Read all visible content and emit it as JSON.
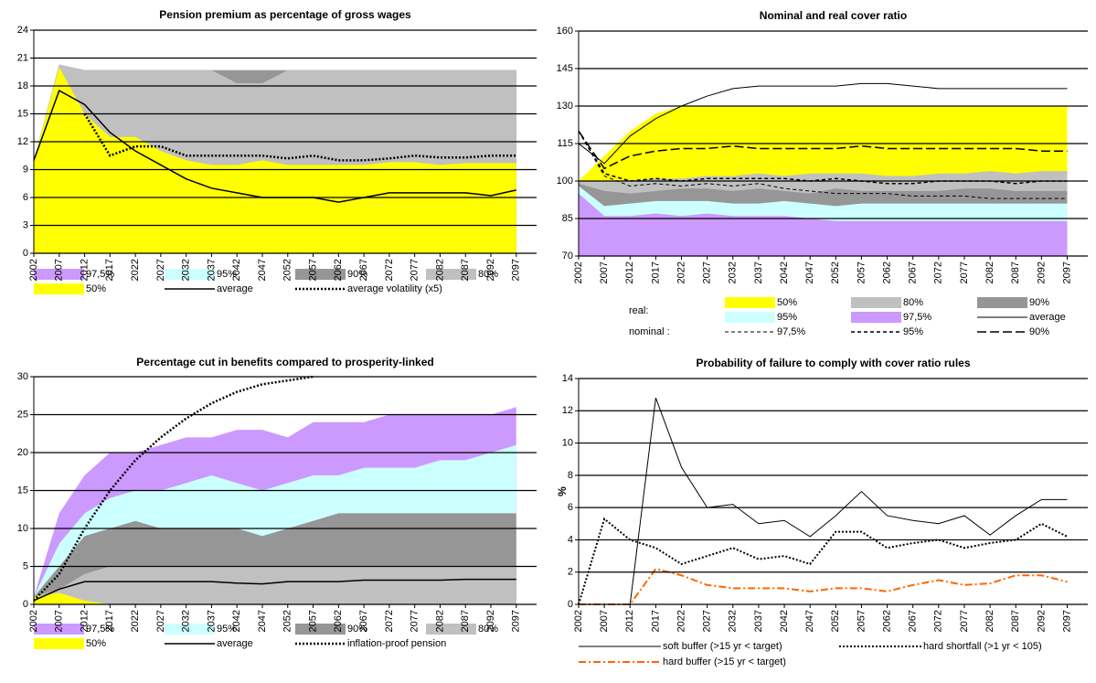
{
  "chart_data": [
    {
      "type": "area",
      "title": "Pension premium as percentage of gross wages",
      "x": [
        2002,
        2007,
        2012,
        2017,
        2022,
        2027,
        2032,
        2037,
        2042,
        2047,
        2052,
        2057,
        2062,
        2067,
        2072,
        2077,
        2082,
        2087,
        2092,
        2097
      ],
      "xlim": [
        2002,
        2101
      ],
      "xticks": [
        2002,
        2007,
        2012,
        2017,
        2022,
        2027,
        2032,
        2037,
        2042,
        2047,
        2052,
        2057,
        2062,
        2067,
        2072,
        2077,
        2082,
        2087,
        2092,
        2097
      ],
      "ylim": [
        0,
        24
      ],
      "yticks": [
        0,
        3,
        6,
        9,
        12,
        15,
        18,
        21,
        24
      ],
      "grid": true,
      "series": [
        {
          "name": "97,5%",
          "color": "#cc99ff",
          "fill": true,
          "values": [
            10,
            20.3,
            19.7,
            19.7,
            19.7,
            19.7,
            19.7,
            19.7,
            19.7,
            19.7,
            19.7,
            19.7,
            19.7,
            19.7,
            19.7,
            19.7,
            19.7,
            19.7,
            19.7,
            19.7
          ]
        },
        {
          "name": "95%",
          "color": "#ccffff",
          "fill": true,
          "values": [
            10,
            20.3,
            19.7,
            19.7,
            19.7,
            19.7,
            19.7,
            19.7,
            19.7,
            19.7,
            19.7,
            19.7,
            19.7,
            19.7,
            19.7,
            19.7,
            19.7,
            19.7,
            19.7,
            19.7
          ]
        },
        {
          "name": "90%",
          "color": "#969696",
          "fill": true,
          "values": [
            10,
            20.3,
            19.7,
            19.7,
            19.7,
            19.7,
            19.7,
            19.7,
            19.7,
            19.7,
            19.7,
            19.7,
            19.7,
            19.7,
            19.7,
            19.7,
            19.7,
            19.7,
            19.7,
            19.7
          ]
        },
        {
          "name": "80%",
          "color": "#c0c0c0",
          "fill": true,
          "values": [
            10,
            20.3,
            19.7,
            19.7,
            19.7,
            19.7,
            19.7,
            19.7,
            18.3,
            18.3,
            19.7,
            19.7,
            19.7,
            19.7,
            19.7,
            19.7,
            19.7,
            19.7,
            19.7,
            19.7
          ]
        },
        {
          "name": "50%",
          "color": "#ffff00",
          "fill": true,
          "values": [
            10,
            20,
            15,
            12.5,
            12.5,
            11,
            10,
            9.5,
            9.5,
            10,
            9.5,
            9.5,
            9.5,
            9.5,
            9.8,
            9.8,
            9.5,
            9.7,
            9.7,
            9.7
          ]
        },
        {
          "name": "average",
          "color": "#000000",
          "dash": "solid",
          "width": 1.5,
          "values": [
            10,
            17.5,
            16,
            13,
            11,
            9.5,
            8,
            7,
            6.5,
            6,
            6,
            6,
            5.5,
            6,
            6.5,
            6.5,
            6.5,
            6.5,
            6.2,
            6.8
          ]
        },
        {
          "name": "average volatility (x5)",
          "color": "#000000",
          "dash": "dotted",
          "width": 2.5,
          "values": [
            null,
            null,
            15,
            10.5,
            11.5,
            11.5,
            10.5,
            10.5,
            10.5,
            10.5,
            10.2,
            10.5,
            10,
            10,
            10.2,
            10.5,
            10.3,
            10.3,
            10.5,
            10.5
          ]
        }
      ]
    },
    {
      "type": "area",
      "title": "Nominal and real cover ratio",
      "x": [
        2002,
        2007,
        2012,
        2017,
        2022,
        2027,
        2032,
        2037,
        2042,
        2047,
        2052,
        2057,
        2062,
        2067,
        2072,
        2077,
        2082,
        2087,
        2092,
        2097
      ],
      "xlim": [
        2002,
        2101
      ],
      "xticks": [
        2002,
        2007,
        2012,
        2017,
        2022,
        2027,
        2032,
        2037,
        2042,
        2047,
        2052,
        2057,
        2062,
        2067,
        2072,
        2077,
        2082,
        2087,
        2092,
        2097
      ],
      "ylim": [
        70,
        160
      ],
      "yticks": [
        70,
        85,
        100,
        115,
        130,
        145,
        160
      ],
      "grid": true,
      "legend_labels": [
        "real:",
        "nominal :"
      ],
      "series": [
        {
          "name": "50%",
          "color": "#ffff00",
          "fill": true,
          "values": [
            100,
            110,
            120,
            127,
            130,
            130,
            130,
            130,
            130,
            130,
            130,
            130,
            130,
            130,
            130,
            130,
            130,
            130,
            130,
            130
          ]
        },
        {
          "name": "80%",
          "color": "#c0c0c0",
          "fill": true,
          "values": [
            100,
            100,
            100,
            101,
            101,
            102,
            102,
            103,
            102,
            103,
            103,
            103,
            102,
            102,
            103,
            103,
            104,
            103,
            104,
            104
          ]
        },
        {
          "name": "90%",
          "color": "#969696",
          "fill": true,
          "values": [
            99,
            96,
            95,
            96,
            97,
            97,
            96,
            97,
            96,
            95,
            97,
            96,
            96,
            96,
            96,
            97,
            97,
            96,
            96,
            96
          ]
        },
        {
          "name": "95%",
          "color": "#ccffff",
          "fill": true,
          "values": [
            98,
            90,
            91,
            92,
            92,
            92,
            91,
            91,
            92,
            91,
            90,
            91,
            91,
            91,
            91,
            91,
            91,
            91,
            91,
            91
          ]
        },
        {
          "name": "97,5%",
          "color": "#cc99ff",
          "fill": true,
          "values": [
            95,
            86,
            86,
            87,
            86,
            87,
            86,
            86,
            86,
            85,
            84,
            84,
            84,
            84,
            84,
            84,
            84,
            84,
            84,
            84
          ]
        },
        {
          "name": "average",
          "color": "#000000",
          "dash": "solid",
          "width": 1,
          "values": [
            115,
            107,
            118,
            125,
            130,
            134,
            137,
            138,
            138,
            138,
            138,
            139,
            139,
            138,
            137,
            137,
            137,
            137,
            137,
            137
          ]
        },
        {
          "name": "97,5%",
          "color": "#000000",
          "dash": "dashed",
          "width": 1,
          "values": [
            120,
            102,
            98,
            99,
            98,
            99,
            98,
            99,
            97,
            96,
            95,
            95,
            95,
            94,
            94,
            94,
            93,
            93,
            93,
            93
          ]
        },
        {
          "name": "95%",
          "color": "#000000",
          "dash": "dashed",
          "width": 1.5,
          "values": [
            120,
            103,
            100,
            101,
            100,
            101,
            101,
            101,
            101,
            100,
            101,
            100,
            99,
            99,
            100,
            100,
            100,
            99,
            100,
            100
          ]
        },
        {
          "name": "90%",
          "color": "#000000",
          "dash": "longdash",
          "width": 1.5,
          "values": [
            120,
            105,
            110,
            112,
            113,
            113,
            114,
            113,
            113,
            113,
            113,
            114,
            113,
            113,
            113,
            113,
            113,
            113,
            112,
            112
          ]
        }
      ]
    },
    {
      "type": "area",
      "title": "Percentage cut in benefits compared to prosperity-linked",
      "x": [
        2002,
        2007,
        2012,
        2017,
        2022,
        2027,
        2032,
        2037,
        2042,
        2047,
        2052,
        2057,
        2062,
        2067,
        2072,
        2077,
        2082,
        2087,
        2092,
        2097
      ],
      "xlim": [
        2002,
        2101
      ],
      "xticks": [
        2002,
        2007,
        2012,
        2017,
        2022,
        2027,
        2032,
        2037,
        2042,
        2047,
        2052,
        2057,
        2062,
        2067,
        2072,
        2077,
        2082,
        2087,
        2092,
        2097
      ],
      "ylim": [
        0,
        30
      ],
      "yticks": [
        0,
        5,
        10,
        15,
        20,
        25,
        30
      ],
      "grid": true,
      "series": [
        {
          "name": "97,5%",
          "color": "#cc99ff",
          "fill": true,
          "values": [
            1,
            12,
            17,
            20,
            20,
            21,
            22,
            22,
            23,
            23,
            22,
            24,
            24,
            24,
            25,
            25,
            25,
            25,
            25,
            26
          ]
        },
        {
          "name": "95%",
          "color": "#ccffff",
          "fill": true,
          "values": [
            1,
            8,
            12,
            14,
            15,
            15,
            16,
            17,
            16,
            15,
            16,
            17,
            17,
            18,
            18,
            18,
            19,
            19,
            20,
            21
          ]
        },
        {
          "name": "90%",
          "color": "#969696",
          "fill": true,
          "values": [
            1,
            5,
            9,
            10,
            11,
            10,
            10,
            10,
            10,
            9,
            10,
            11,
            12,
            12,
            12,
            12,
            12,
            12,
            12,
            12
          ]
        },
        {
          "name": "80%",
          "color": "#c0c0c0",
          "fill": true,
          "values": [
            1,
            2,
            4,
            5,
            5,
            5,
            5,
            5,
            5,
            5,
            5,
            5,
            5,
            5,
            5,
            5,
            5,
            5,
            5,
            5
          ]
        },
        {
          "name": "50%",
          "color": "#ffff00",
          "fill": true,
          "values": [
            1,
            1.5,
            0.5,
            0,
            0,
            0,
            0,
            0,
            0,
            0,
            0,
            0,
            0,
            0,
            0,
            0,
            0,
            0,
            0,
            0
          ]
        },
        {
          "name": "average",
          "color": "#000000",
          "dash": "solid",
          "width": 1.5,
          "values": [
            0.5,
            2,
            3,
            3,
            3,
            3,
            3,
            3,
            2.8,
            2.7,
            3,
            3,
            3,
            3.2,
            3.2,
            3.2,
            3.2,
            3.3,
            3.3,
            3.3
          ]
        },
        {
          "name": "inflation-proof pension",
          "color": "#000000",
          "dash": "dotted",
          "width": 2.5,
          "values": [
            0.5,
            4,
            10,
            15,
            19,
            22,
            24.5,
            26.5,
            28,
            29,
            29.5,
            30,
            null,
            null,
            null,
            null,
            null,
            null,
            null,
            null
          ]
        }
      ]
    },
    {
      "type": "line",
      "title": "Probability of failure to comply with cover ratio rules",
      "y_label": "%",
      "x": [
        2002,
        2007,
        2012,
        2017,
        2022,
        2027,
        2032,
        2037,
        2042,
        2047,
        2052,
        2057,
        2062,
        2067,
        2072,
        2077,
        2082,
        2087,
        2092,
        2097
      ],
      "xlim": [
        2002,
        2101
      ],
      "xticks": [
        2002,
        2007,
        2012,
        2017,
        2022,
        2027,
        2032,
        2037,
        2042,
        2047,
        2052,
        2057,
        2062,
        2067,
        2072,
        2077,
        2082,
        2087,
        2092,
        2097
      ],
      "ylim": [
        0,
        14
      ],
      "yticks": [
        0,
        2,
        4,
        6,
        8,
        10,
        12,
        14
      ],
      "grid": true,
      "series": [
        {
          "name": "soft buffer (>15 yr < target)",
          "color": "#000000",
          "dash": "solid",
          "width": 1,
          "values": [
            0,
            0,
            0,
            12.8,
            8.5,
            6,
            6.2,
            5,
            5.2,
            4.2,
            5.5,
            7,
            5.5,
            5.2,
            5,
            5.5,
            4.3,
            5.5,
            6.5,
            6.5
          ]
        },
        {
          "name": "hard shortfall (>1 yr < 105)",
          "color": "#000000",
          "dash": "dotted",
          "width": 2,
          "values": [
            0,
            5.3,
            4,
            3.5,
            2.5,
            3,
            3.5,
            2.8,
            3,
            2.5,
            4.5,
            4.5,
            3.5,
            3.8,
            4,
            3.5,
            3.8,
            4,
            5,
            4.2
          ]
        },
        {
          "name": "hard buffer (>15 yr < target)",
          "color": "#ff6600",
          "dash": "dashdot",
          "width": 2,
          "values": [
            0,
            0,
            0,
            2.2,
            1.8,
            1.2,
            1,
            1,
            1,
            0.8,
            1,
            1,
            0.8,
            1.2,
            1.5,
            1.2,
            1.3,
            1.8,
            1.8,
            1.4
          ]
        }
      ]
    }
  ]
}
